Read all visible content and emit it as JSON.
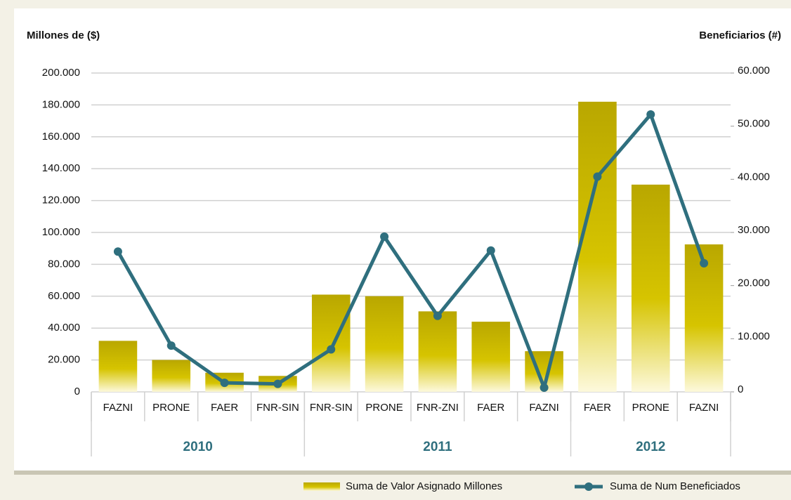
{
  "chart_data": {
    "type": "bar-line",
    "ylabel": "Millones de ($)",
    "y2label": "Beneficiarios (#)",
    "groups": [
      {
        "label": "2010",
        "categories": [
          "FAZNI",
          "PRONE",
          "FAER",
          "FNR-SIN"
        ]
      },
      {
        "label": "2011",
        "categories": [
          "FNR-SIN",
          "PRONE",
          "FNR-ZNI",
          "FAER",
          "FAZNI"
        ]
      },
      {
        "label": "2012",
        "categories": [
          "FAER",
          "PRONE",
          "FAZNI"
        ]
      }
    ],
    "series": [
      {
        "name": "Suma de Valor Asignado Millones",
        "type": "bar",
        "color": "#c2b000",
        "values": [
          32000,
          20000,
          12000,
          10000,
          61000,
          60000,
          50500,
          44000,
          25500,
          182000,
          130000,
          92500
        ]
      },
      {
        "name": "Suma de Num Beneficiados",
        "type": "line",
        "axis": "y2",
        "color": "#2f6f7e",
        "values": [
          26400,
          8700,
          1700,
          1500,
          8000,
          29200,
          14300,
          26600,
          800,
          40500,
          52200,
          24200
        ]
      }
    ],
    "ylim": [
      0,
      200000
    ],
    "yticks": [
      0,
      {
        "value": 20000,
        "label": "20.000"
      },
      {
        "value": 40000,
        "label": "40.000"
      },
      {
        "value": 60000,
        "label": "60.000"
      },
      {
        "value": 80000,
        "label": "80.000"
      },
      {
        "value": 100000,
        "label": "100.000"
      },
      {
        "value": 120000,
        "label": "120.000"
      },
      {
        "value": 140000,
        "label": "140.000"
      },
      {
        "value": 160000,
        "label": "160.000"
      },
      {
        "value": 180000,
        "label": "180.000"
      },
      {
        "value": 200000,
        "label": "200.000"
      }
    ],
    "y2lim": [
      0,
      60000
    ],
    "y2ticks": [
      0,
      {
        "value": 10000,
        "label": "10.000"
      },
      {
        "value": 20000,
        "label": "20.000"
      },
      {
        "value": 30000,
        "label": "30.000"
      },
      {
        "value": 40000,
        "label": "40.000"
      },
      {
        "value": 50000,
        "label": "50.000"
      },
      {
        "value": 60000,
        "label": "60.000"
      }
    ],
    "grid": true,
    "legend": "bottom-right"
  }
}
